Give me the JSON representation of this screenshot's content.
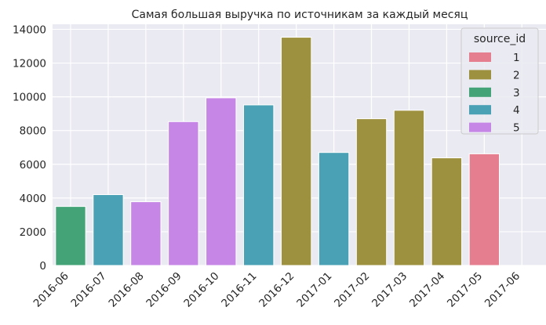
{
  "chart_data": {
    "type": "bar",
    "title": "Самая большая выручка по источникам за каждый месяц",
    "xlabel": "",
    "ylabel": "",
    "categories": [
      "2016-06",
      "2016-07",
      "2016-08",
      "2016-09",
      "2016-10",
      "2016-11",
      "2016-12",
      "2017-01",
      "2017-02",
      "2017-03",
      "2017-04",
      "2017-05",
      "2017-06"
    ],
    "values": [
      3500,
      4200,
      3780,
      8530,
      9940,
      9520,
      13530,
      6700,
      8700,
      9200,
      6380,
      6620,
      null
    ],
    "source_id": [
      3,
      4,
      5,
      5,
      5,
      4,
      2,
      4,
      2,
      2,
      2,
      1,
      null
    ],
    "ylim": [
      0,
      14300
    ],
    "yticks": [
      0,
      2000,
      4000,
      6000,
      8000,
      10000,
      12000,
      14000
    ],
    "grid": true,
    "background": "#EAEAF2",
    "legend": {
      "title": "source_id",
      "placement": "top-right",
      "entries": [
        {
          "label": "1",
          "color": "#E57F90"
        },
        {
          "label": "2",
          "color": "#9D903E"
        },
        {
          "label": "3",
          "color": "#44A478"
        },
        {
          "label": "4",
          "color": "#4AA0B5"
        },
        {
          "label": "5",
          "color": "#C686E6"
        }
      ]
    }
  }
}
